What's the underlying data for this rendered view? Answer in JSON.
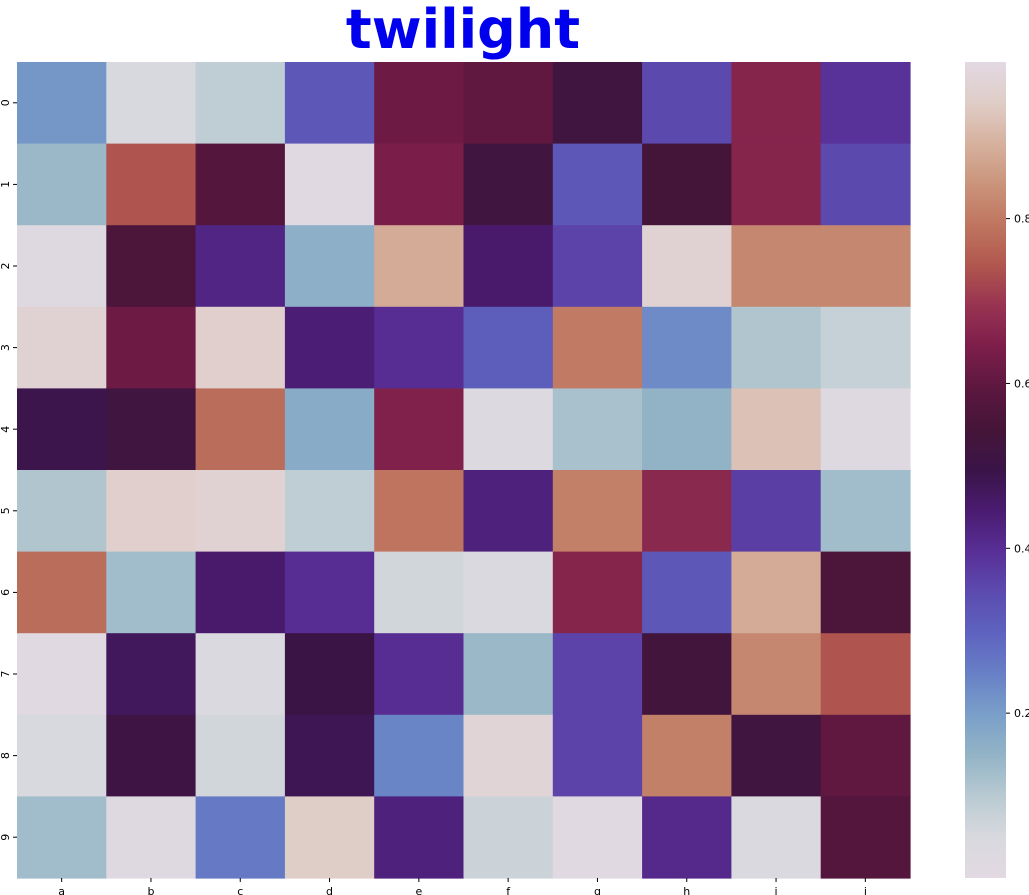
{
  "chart_data": {
    "type": "heatmap",
    "title": "twilight",
    "title_color": "#0000ee",
    "colormap": "twilight",
    "x_labels": [
      "a",
      "b",
      "c",
      "d",
      "e",
      "f",
      "g",
      "h",
      "i",
      "j"
    ],
    "y_labels": [
      "0",
      "1",
      "2",
      "3",
      "4",
      "5",
      "6",
      "7",
      "8",
      "9"
    ],
    "values": [
      [
        0.21,
        0.05,
        0.09,
        0.32,
        0.62,
        0.6,
        0.52,
        0.35,
        0.66,
        0.39
      ],
      [
        0.14,
        0.74,
        0.58,
        0.01,
        0.64,
        0.52,
        0.32,
        0.54,
        0.66,
        0.35
      ],
      [
        0.02,
        0.56,
        0.42,
        0.16,
        0.88,
        0.45,
        0.36,
        0.96,
        0.82,
        0.82
      ],
      [
        0.96,
        0.62,
        0.95,
        0.44,
        0.4,
        0.31,
        0.8,
        0.23,
        0.11,
        0.08
      ],
      [
        0.49,
        0.52,
        0.78,
        0.17,
        0.65,
        0.03,
        0.12,
        0.15,
        0.92,
        0.02
      ],
      [
        0.11,
        0.95,
        0.96,
        0.09,
        0.79,
        0.43,
        0.81,
        0.67,
        0.37,
        0.13
      ],
      [
        0.78,
        0.13,
        0.45,
        0.4,
        0.06,
        0.04,
        0.66,
        0.32,
        0.88,
        0.56
      ],
      [
        0.01,
        0.47,
        0.04,
        0.5,
        0.4,
        0.14,
        0.36,
        0.53,
        0.82,
        0.74
      ],
      [
        0.05,
        0.51,
        0.06,
        0.48,
        0.24,
        0.97,
        0.36,
        0.81,
        0.52,
        0.6
      ],
      [
        0.13,
        0.02,
        0.26,
        0.94,
        0.43,
        0.07,
        0.01,
        0.41,
        0.04,
        0.58
      ]
    ],
    "colorbar": {
      "vmin": 0.0,
      "vmax": 0.99,
      "ticks": [
        0.2,
        0.4,
        0.6,
        0.8
      ],
      "tick_labels": [
        "0.2",
        "0.4",
        "0.6",
        "0.8"
      ]
    }
  }
}
